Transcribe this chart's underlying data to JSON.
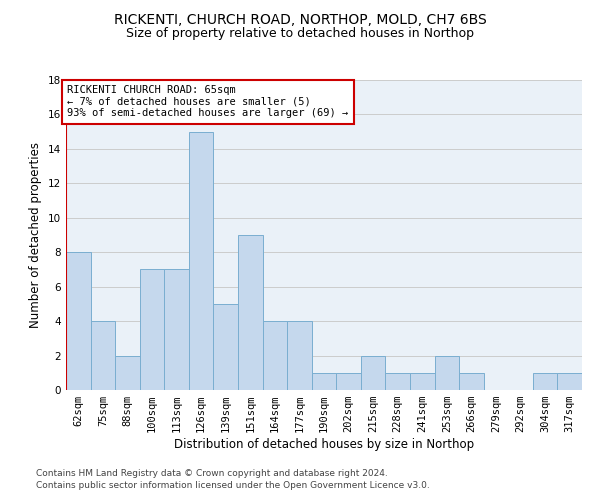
{
  "title": "RICKENTI, CHURCH ROAD, NORTHOP, MOLD, CH7 6BS",
  "subtitle": "Size of property relative to detached houses in Northop",
  "xlabel": "Distribution of detached houses by size in Northop",
  "ylabel": "Number of detached properties",
  "categories": [
    "62sqm",
    "75sqm",
    "88sqm",
    "100sqm",
    "113sqm",
    "126sqm",
    "139sqm",
    "151sqm",
    "164sqm",
    "177sqm",
    "190sqm",
    "202sqm",
    "215sqm",
    "228sqm",
    "241sqm",
    "253sqm",
    "266sqm",
    "279sqm",
    "292sqm",
    "304sqm",
    "317sqm"
  ],
  "values": [
    8,
    4,
    2,
    7,
    7,
    15,
    5,
    9,
    4,
    4,
    1,
    1,
    2,
    1,
    1,
    2,
    1,
    0,
    0,
    1,
    1
  ],
  "bar_color": "#c5d8ed",
  "bar_edge_color": "#7aaed0",
  "annotation_box_text": "RICKENTI CHURCH ROAD: 65sqm\n← 7% of detached houses are smaller (5)\n93% of semi-detached houses are larger (69) →",
  "annotation_box_color": "#ffffff",
  "annotation_box_edge_color": "#cc0000",
  "ylim": [
    0,
    18
  ],
  "yticks": [
    0,
    2,
    4,
    6,
    8,
    10,
    12,
    14,
    16,
    18
  ],
  "grid_color": "#cccccc",
  "bg_color": "#eaf1f8",
  "footnote1": "Contains HM Land Registry data © Crown copyright and database right 2024.",
  "footnote2": "Contains public sector information licensed under the Open Government Licence v3.0.",
  "title_fontsize": 10,
  "subtitle_fontsize": 9,
  "xlabel_fontsize": 8.5,
  "ylabel_fontsize": 8.5,
  "tick_fontsize": 7.5,
  "annotation_fontsize": 7.5,
  "footnote_fontsize": 6.5
}
